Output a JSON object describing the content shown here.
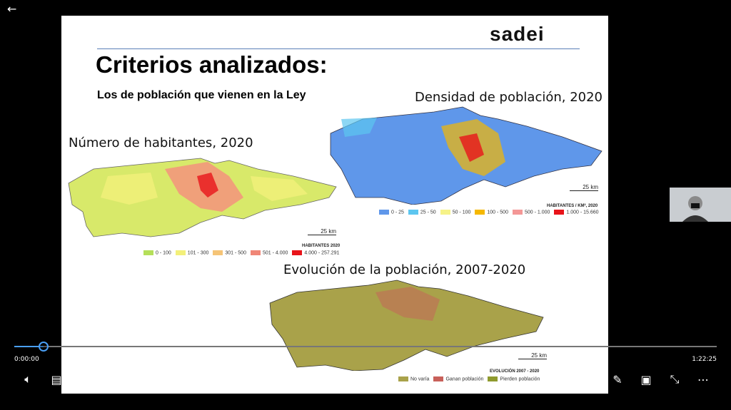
{
  "player": {
    "current_time": "0:00:00",
    "total_time": "1:22:25",
    "progress_fraction": 0.042,
    "skip_back_seconds": "10",
    "skip_forward_seconds": "30"
  },
  "slide": {
    "logo": "sadei",
    "title": "Criterios analizados:",
    "subtitle": "Los de población que vienen en la Ley",
    "maps": [
      {
        "label": "Número de habitantes, 2020",
        "scale": "25 km",
        "legend_title": "HABITANTES 2020",
        "legend": [
          {
            "label": "0 - 100",
            "color": "#b5df5a"
          },
          {
            "label": "101 - 300",
            "color": "#f3f07a"
          },
          {
            "label": "301 - 500",
            "color": "#f5c477"
          },
          {
            "label": "501 - 4.000",
            "color": "#f08677"
          },
          {
            "label": "4.000 - 257.291",
            "color": "#e8141a"
          }
        ]
      },
      {
        "label": "Densidad de población, 2020",
        "scale": "25 km",
        "legend_title": "HABITANTES / KM², 2020",
        "legend": [
          {
            "label": "0 - 25",
            "color": "#5f97ea"
          },
          {
            "label": "25 - 50",
            "color": "#5dc6f0"
          },
          {
            "label": "50 - 100",
            "color": "#f6f388"
          },
          {
            "label": "100 - 500",
            "color": "#f5b800"
          },
          {
            "label": "500 - 1.000",
            "color": "#f49796"
          },
          {
            "label": "1.000 - 15.660",
            "color": "#e8141a"
          }
        ]
      },
      {
        "label": "Evolución de la población, 2007-2020",
        "scale": "25 km",
        "legend_title": "EVOLUCIÓN 2007 - 2020",
        "legend": [
          {
            "label": "No varía",
            "color": "#a9a24a"
          },
          {
            "label": "Ganan población",
            "color": "#c8605a"
          },
          {
            "label": "Pierden población",
            "color": "#8f9a2e"
          }
        ]
      }
    ]
  }
}
